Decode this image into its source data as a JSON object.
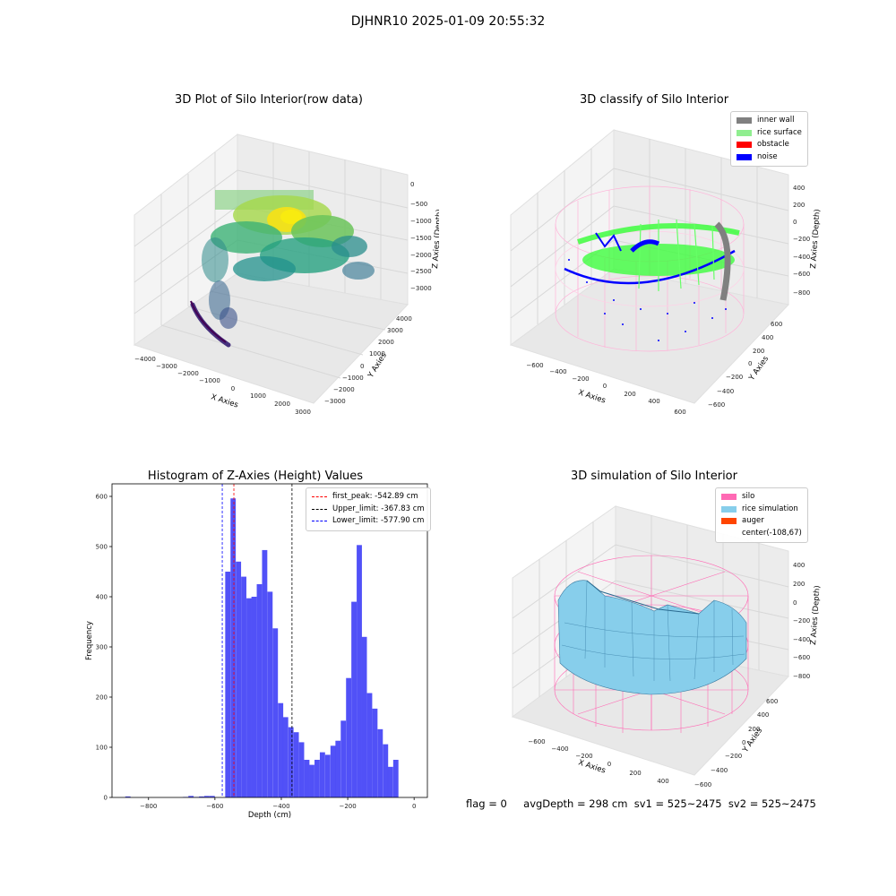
{
  "suptitle": "DJHNR10 2025-01-09 20:55:32",
  "panels": {
    "raw": {
      "title": "3D Plot of Silo Interior(row data)",
      "xlabel": "X Axies",
      "ylabel": "Y Axies",
      "zlabel": "Z Axies (Depth)",
      "xticks": [
        "−4000",
        "−3000",
        "−2000",
        "−1000",
        "0",
        "1000",
        "2000",
        "3000"
      ],
      "yticks": [
        "−3000",
        "−2000",
        "−1000",
        "0",
        "1000",
        "2000",
        "3000",
        "4000"
      ],
      "zticks": [
        "0",
        "−500",
        "−1000",
        "−1500",
        "−2000",
        "−2500",
        "−3000"
      ]
    },
    "classify": {
      "title": "3D classify of Silo Interior",
      "xlabel": "X Axies",
      "ylabel": "Y Axies",
      "zlabel": "Z Axies (Depth)",
      "xticks": [
        "−600",
        "−400",
        "−200",
        "0",
        "200",
        "400",
        "600"
      ],
      "yticks": [
        "−600",
        "−400",
        "−200",
        "0",
        "200",
        "400",
        "600"
      ],
      "zticks": [
        "400",
        "200",
        "0",
        "−200",
        "−400",
        "−600",
        "−800"
      ],
      "legend": [
        {
          "label": "inner wall",
          "color": "#808080"
        },
        {
          "label": "rice surface",
          "color": "#90ee90"
        },
        {
          "label": "obstacle",
          "color": "#ff0000"
        },
        {
          "label": "noise",
          "color": "#0000ff"
        }
      ]
    },
    "simulation": {
      "title": "3D simulation of Silo Interior",
      "xlabel": "X Axies",
      "ylabel": "Y Axies",
      "zlabel": "Z Axies (Depth)",
      "xticks": [
        "−600",
        "−400",
        "−200",
        "0",
        "200",
        "400"
      ],
      "yticks": [
        "−600",
        "−400",
        "−200",
        "0",
        "200",
        "400",
        "600"
      ],
      "zticks": [
        "400",
        "200",
        "0",
        "−200",
        "−400",
        "−600",
        "−800"
      ],
      "legend": [
        {
          "label": "silo",
          "color": "#ff69b4"
        },
        {
          "label": "rice simulation",
          "color": "#87ceeb"
        },
        {
          "label": "auger",
          "color": "#ff4500"
        },
        {
          "label": "center(-108,67)",
          "color": ""
        }
      ]
    }
  },
  "histogram": {
    "title": "Histogram of Z-Axies (Height) Values",
    "xlabel": "Depth (cm)",
    "ylabel": "Frequency",
    "legend": [
      {
        "label": "first_peak: -542.89 cm",
        "color": "#ff0000"
      },
      {
        "label": "Upper_limit: -367.83 cm",
        "color": "#000000"
      },
      {
        "label": "Lower_limit: -577.90 cm",
        "color": "#0000ff"
      }
    ]
  },
  "chart_data": [
    {
      "type": "bar",
      "title": "Histogram of Z-Axies (Height) Values",
      "xlabel": "Depth (cm)",
      "ylabel": "Frequency",
      "xlim": [
        -910,
        40
      ],
      "ylim": [
        0,
        625
      ],
      "xticks": [
        -800,
        -600,
        -400,
        -200,
        0
      ],
      "yticks": [
        0,
        100,
        200,
        300,
        400,
        500,
        600
      ],
      "bin_width": 15.8,
      "bins": [
        [
          -870,
          2
        ],
        [
          -696,
          1
        ],
        [
          -680,
          3
        ],
        [
          -664,
          1
        ],
        [
          -648,
          2
        ],
        [
          -632,
          3
        ],
        [
          -616,
          3
        ],
        [
          -569,
          450
        ],
        [
          -553,
          596
        ],
        [
          -537,
          470
        ],
        [
          -521,
          440
        ],
        [
          -505,
          397
        ],
        [
          -490,
          400
        ],
        [
          -474,
          425
        ],
        [
          -458,
          493
        ],
        [
          -442,
          410
        ],
        [
          -426,
          337
        ],
        [
          -410,
          188
        ],
        [
          -395,
          160
        ],
        [
          -379,
          140
        ],
        [
          -363,
          130
        ],
        [
          -347,
          110
        ],
        [
          -331,
          75
        ],
        [
          -316,
          65
        ],
        [
          -300,
          75
        ],
        [
          -284,
          90
        ],
        [
          -268,
          85
        ],
        [
          -252,
          103
        ],
        [
          -237,
          113
        ],
        [
          -221,
          153
        ],
        [
          -205,
          238
        ],
        [
          -189,
          390
        ],
        [
          -173,
          503
        ],
        [
          -158,
          320
        ],
        [
          -142,
          208
        ],
        [
          -126,
          177
        ],
        [
          -110,
          136
        ],
        [
          -94,
          106
        ],
        [
          -79,
          61
        ],
        [
          -63,
          75
        ]
      ],
      "bar_color": "#4848f7",
      "vlines": [
        {
          "name": "first_peak",
          "x": -542.89,
          "color": "#ff0000"
        },
        {
          "name": "Upper_limit",
          "x": -367.83,
          "color": "#000000"
        },
        {
          "name": "Lower_limit",
          "x": -577.9,
          "color": "#0000ff"
        }
      ],
      "legend_position": "top-right"
    }
  ],
  "status": {
    "flag": "flag = 0",
    "info": "avgDepth = 298 cm  sv1 = 525~2475  sv2 = 525~2475"
  }
}
